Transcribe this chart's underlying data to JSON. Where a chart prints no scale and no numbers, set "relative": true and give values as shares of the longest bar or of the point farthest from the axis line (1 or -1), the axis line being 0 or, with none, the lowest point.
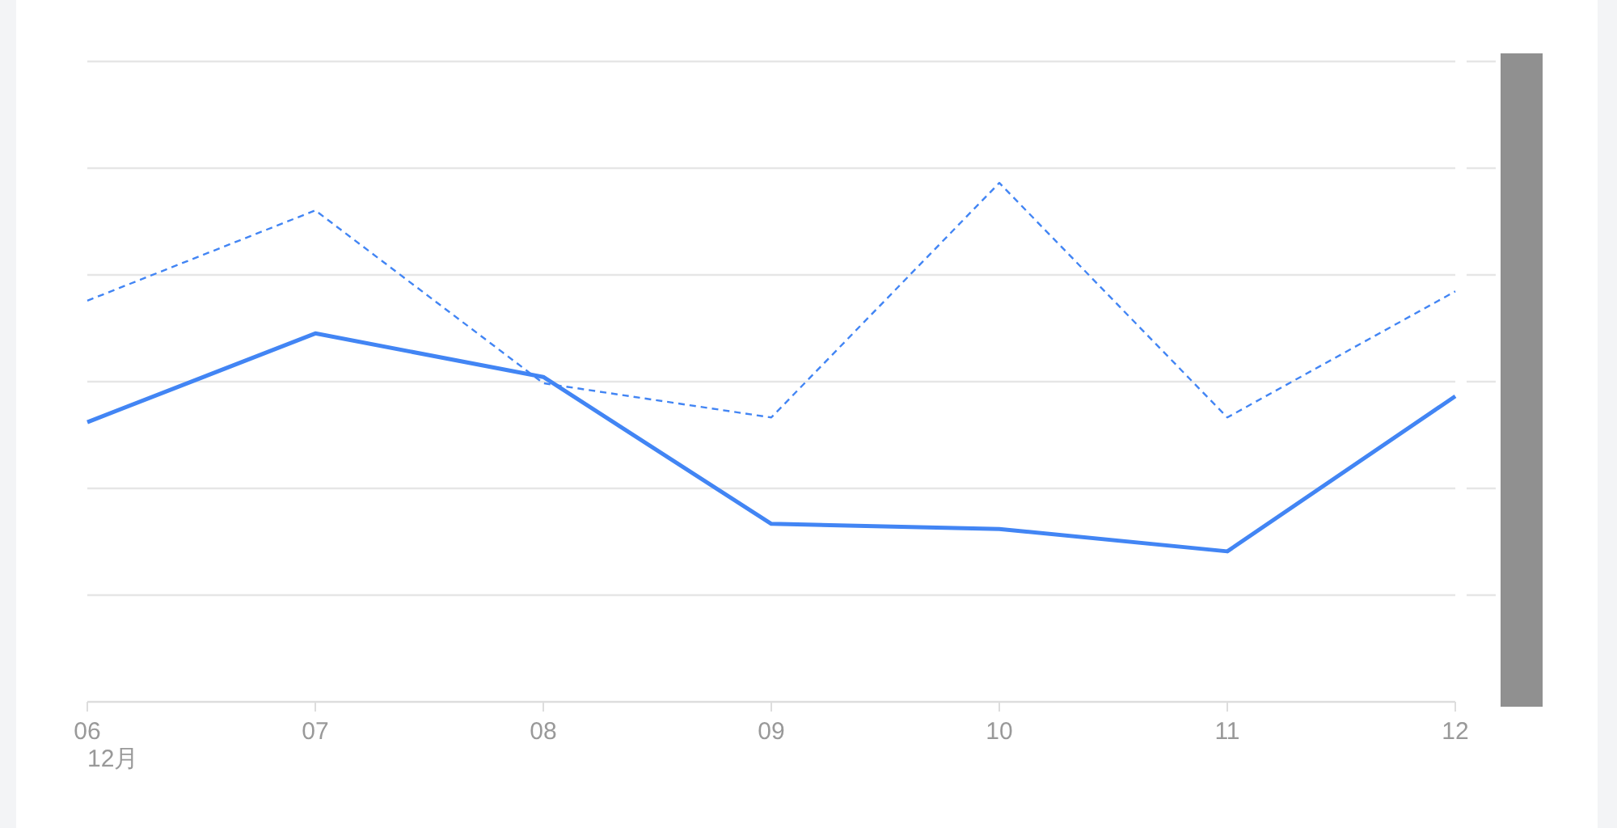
{
  "chart_data": {
    "type": "line",
    "relative": true,
    "categories": [
      "06",
      "07",
      "08",
      "09",
      "10",
      "11",
      "12"
    ],
    "series": [
      {
        "color": "#4285f4",
        "line_style": "solid",
        "values": [
          0.539,
          0.71,
          0.626,
          0.343,
          0.333,
          0.29,
          0.589
        ]
      },
      {
        "color": "#4285f4",
        "line_style": "dashed",
        "values": [
          0.773,
          0.947,
          0.614,
          0.548,
          1,
          0.548,
          0.791
        ]
      }
    ],
    "annotations": [
      "12月"
    ],
    "grid": "y",
    "marker": "none"
  }
}
